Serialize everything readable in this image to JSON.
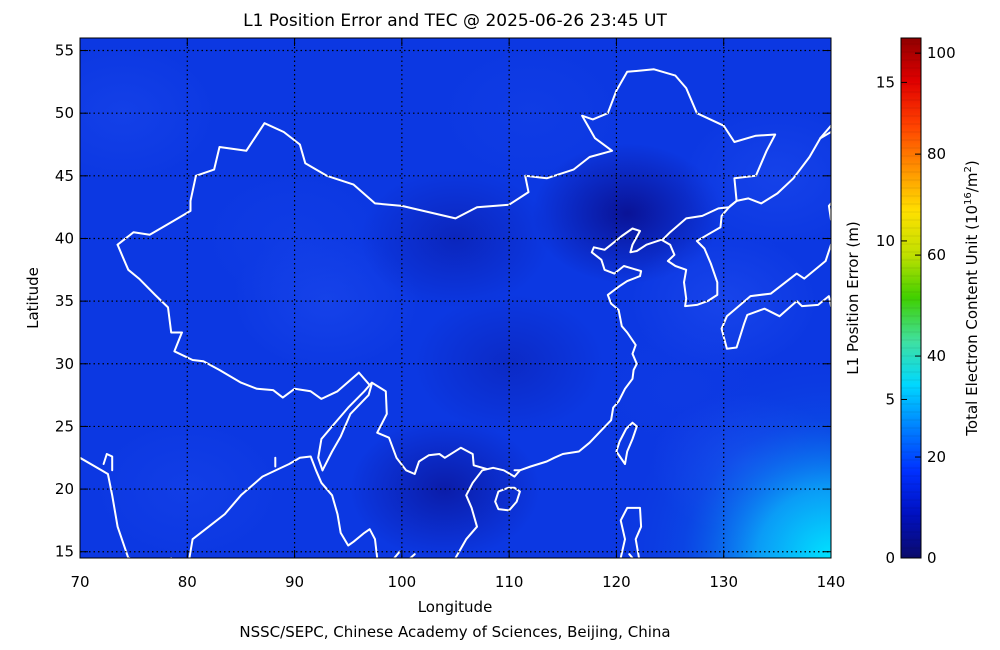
{
  "chart_data": {
    "type": "heatmap",
    "title": "L1 Position Error and TEC @ 2025-06-26 23:45 UT",
    "footer": "NSSC/SEPC, Chinese Academy of Sciences, Beijing, China",
    "xlabel": "Longitude",
    "ylabel": "Latitude",
    "xlim": [
      70,
      140
    ],
    "ylim": [
      14.5,
      56
    ],
    "x_ticks": [
      "70",
      "80",
      "90",
      "100",
      "110",
      "120",
      "130",
      "140"
    ],
    "y_ticks": [
      "15",
      "20",
      "25",
      "30",
      "35",
      "40",
      "45",
      "50",
      "55"
    ],
    "grid": true,
    "colorbar": {
      "left_label": "L1 Position Error (m)",
      "left_ticks": [
        "0",
        "5",
        "10",
        "15"
      ],
      "left_range": [
        0,
        16.4
      ],
      "right_label_main": "Total Electron Content Unit (10",
      "right_label_sup": "16",
      "right_label_mid": "/m",
      "right_label_sup2": "2",
      "right_label_end": ")",
      "right_ticks": [
        "0",
        "20",
        "40",
        "60",
        "80",
        "100"
      ],
      "right_range": [
        0,
        103
      ],
      "colors": [
        "#0b0b6b",
        "#0010c0",
        "#0030ff",
        "#0080ff",
        "#00d8ff",
        "#40e0a0",
        "#40d000",
        "#c0e000",
        "#ffe000",
        "#ff9000",
        "#ff4000",
        "#e00000",
        "#900000"
      ]
    },
    "tec_field_samples": [
      {
        "lon": 74,
        "lat": 50,
        "tec": 21
      },
      {
        "lon": 90,
        "lat": 40,
        "tec": 19
      },
      {
        "lon": 93,
        "lat": 35,
        "tec": 22
      },
      {
        "lon": 105,
        "lat": 40,
        "tec": 16
      },
      {
        "lon": 110,
        "lat": 30,
        "tec": 17
      },
      {
        "lon": 121,
        "lat": 42,
        "tec": 11
      },
      {
        "lon": 104,
        "lat": 20,
        "tec": 14
      },
      {
        "lon": 126,
        "lat": 28,
        "tec": 18
      },
      {
        "lon": 135,
        "lat": 45,
        "tec": 22
      },
      {
        "lon": 138,
        "lat": 16,
        "tec": 40
      },
      {
        "lon": 132,
        "lat": 22,
        "tec": 29
      },
      {
        "lon": 130,
        "lat": 35,
        "tec": 23
      },
      {
        "lon": 80,
        "lat": 20,
        "tec": 20
      },
      {
        "lon": 112,
        "lat": 50,
        "tec": 19
      }
    ],
    "coastlines": [
      [
        [
          70,
          22.5
        ],
        [
          72,
          21.5
        ],
        [
          72.6,
          21.2
        ],
        [
          73,
          19.5
        ],
        [
          73.5,
          17
        ],
        [
          74.5,
          14.5
        ]
      ],
      [
        [
          72.2,
          22
        ],
        [
          72.5,
          22.8
        ],
        [
          73,
          22.6
        ],
        [
          73,
          21.5
        ]
      ],
      [
        [
          80.2,
          14.5
        ],
        [
          80.5,
          16
        ],
        [
          82,
          17
        ],
        [
          83.5,
          18
        ],
        [
          85,
          19.5
        ],
        [
          87,
          21
        ],
        [
          88.5,
          21.6
        ],
        [
          89.5,
          22
        ],
        [
          90.5,
          22.5
        ],
        [
          91.5,
          22.6
        ],
        [
          92,
          21.5
        ],
        [
          92.5,
          20.5
        ],
        [
          93.5,
          19.5
        ],
        [
          94,
          18
        ],
        [
          94.3,
          16.5
        ],
        [
          95,
          15.5
        ],
        [
          95.5,
          15.8
        ],
        [
          96.5,
          16.5
        ],
        [
          97,
          16.8
        ],
        [
          97.5,
          16
        ],
        [
          97.7,
          14.5
        ]
      ],
      [
        [
          99.3,
          14.5
        ],
        [
          99.8,
          15
        ]
      ],
      [
        [
          100.8,
          14.5
        ],
        [
          101.2,
          14.8
        ]
      ],
      [
        [
          105,
          14.5
        ],
        [
          106,
          16
        ],
        [
          107,
          17
        ],
        [
          106.5,
          18.5
        ],
        [
          106,
          19.5
        ],
        [
          106.6,
          20.5
        ],
        [
          107.5,
          21.5
        ],
        [
          108.5,
          21.7
        ],
        [
          109.5,
          21.5
        ],
        [
          110.5,
          21
        ],
        [
          111,
          21.5
        ],
        [
          112,
          21.8
        ],
        [
          113.5,
          22.2
        ],
        [
          114.2,
          22.5
        ],
        [
          115,
          22.8
        ],
        [
          116.5,
          23
        ],
        [
          117.5,
          23.7
        ],
        [
          118.5,
          24.6
        ],
        [
          119.5,
          25.5
        ],
        [
          119.7,
          26.5
        ],
        [
          120.2,
          27
        ],
        [
          120.8,
          28
        ],
        [
          121.5,
          28.8
        ],
        [
          121.6,
          29.5
        ],
        [
          121.9,
          30
        ],
        [
          121.5,
          30.8
        ],
        [
          121.8,
          31.5
        ],
        [
          121,
          32.5
        ],
        [
          120.5,
          33
        ],
        [
          120.2,
          34.3
        ],
        [
          119.5,
          34.8
        ],
        [
          119.2,
          35.5
        ],
        [
          120.3,
          36.2
        ],
        [
          121,
          36.6
        ],
        [
          122.2,
          37
        ],
        [
          122.3,
          37.4
        ],
        [
          121.5,
          37.6
        ],
        [
          120.7,
          37.8
        ],
        [
          119.8,
          37.2
        ],
        [
          118.9,
          37.5
        ],
        [
          118.6,
          38.3
        ],
        [
          117.7,
          38.9
        ],
        [
          117.9,
          39.3
        ],
        [
          118.9,
          39.1
        ],
        [
          119.5,
          39.5
        ],
        [
          120.5,
          40.2
        ],
        [
          121.5,
          40.8
        ],
        [
          122.2,
          40.6
        ],
        [
          121.5,
          39.5
        ],
        [
          121.3,
          38.9
        ],
        [
          121.9,
          39
        ],
        [
          122.8,
          39.5
        ],
        [
          124.2,
          39.9
        ],
        [
          125,
          39.5
        ],
        [
          125.4,
          38.7
        ],
        [
          124.8,
          38.2
        ],
        [
          125.5,
          37.8
        ],
        [
          126.5,
          37.5
        ],
        [
          126.3,
          36.5
        ],
        [
          126.5,
          35.2
        ],
        [
          126.4,
          34.6
        ],
        [
          127.5,
          34.7
        ],
        [
          128.5,
          35
        ],
        [
          129.4,
          35.5
        ],
        [
          129.4,
          36.5
        ],
        [
          128.8,
          38
        ],
        [
          128.2,
          39.2
        ],
        [
          127.5,
          39.8
        ],
        [
          128.5,
          40.3
        ],
        [
          129.7,
          40.9
        ],
        [
          129.8,
          41.8
        ],
        [
          130.6,
          42.6
        ],
        [
          131.2,
          43
        ],
        [
          132.3,
          43.2
        ],
        [
          133.5,
          42.8
        ],
        [
          135,
          43.6
        ],
        [
          136.5,
          44.8
        ],
        [
          138,
          46.5
        ],
        [
          139,
          48
        ],
        [
          140,
          48.5
        ]
      ],
      [
        [
          110.5,
          21.5
        ],
        [
          111,
          21.5
        ]
      ],
      [
        [
          109,
          18.4
        ],
        [
          110,
          18.3
        ],
        [
          110.7,
          19
        ],
        [
          111,
          19.8
        ],
        [
          110.5,
          20.1
        ],
        [
          109.9,
          20.1
        ],
        [
          109,
          19.8
        ],
        [
          108.7,
          19
        ],
        [
          109,
          18.4
        ]
      ],
      [
        [
          120.8,
          22
        ],
        [
          121,
          23
        ],
        [
          121.5,
          24
        ],
        [
          121.9,
          25
        ],
        [
          121.5,
          25.3
        ],
        [
          120.9,
          24.8
        ],
        [
          120.3,
          23.8
        ],
        [
          120,
          23
        ],
        [
          120.8,
          22
        ]
      ],
      [
        [
          120.4,
          14.5
        ],
        [
          120.8,
          16
        ],
        [
          120.4,
          17.5
        ],
        [
          121,
          18.5
        ],
        [
          122.2,
          18.5
        ],
        [
          122.3,
          17
        ],
        [
          121.8,
          16
        ],
        [
          122.1,
          14.5
        ]
      ],
      [
        [
          140,
          34.6
        ],
        [
          139.8,
          35.4
        ],
        [
          138.8,
          34.7
        ],
        [
          137.3,
          34.6
        ],
        [
          136.8,
          35
        ],
        [
          135.2,
          33.8
        ],
        [
          133.8,
          34.4
        ],
        [
          132.2,
          33.9
        ],
        [
          131.9,
          33.2
        ],
        [
          131.2,
          31.3
        ],
        [
          130.3,
          31.2
        ],
        [
          129.8,
          32.8
        ],
        [
          130.3,
          33.8
        ],
        [
          131,
          34.3
        ],
        [
          132.5,
          35.4
        ],
        [
          134.4,
          35.6
        ],
        [
          136.8,
          37.2
        ],
        [
          137.5,
          36.8
        ],
        [
          139.5,
          38.2
        ],
        [
          140,
          39.5
        ]
      ],
      [
        [
          140,
          41.5
        ],
        [
          139.8,
          42.6
        ],
        [
          140.5,
          43.3
        ],
        [
          140.5,
          45
        ]
      ],
      [
        [
          121.5,
          14.5
        ],
        [
          121.2,
          14.8
        ]
      ],
      [
        [
          74.5,
          14.5
        ],
        [
          74.6,
          14.5
        ]
      ]
    ],
    "borders": [
      [
        [
          78.5,
          14.5
        ],
        [
          78.5,
          14.5
        ]
      ],
      [
        [
          88.2,
          21.8
        ],
        [
          88.2,
          22.5
        ]
      ],
      [
        [
          92.6,
          21.5
        ],
        [
          92.2,
          22.5
        ],
        [
          92.5,
          24
        ],
        [
          93.5,
          25
        ],
        [
          95,
          26.5
        ],
        [
          96.5,
          27.8
        ],
        [
          97.2,
          28.5
        ],
        [
          98.5,
          27.8
        ],
        [
          98.6,
          26
        ],
        [
          97.7,
          24.5
        ],
        [
          98.8,
          24.1
        ],
        [
          99.5,
          22.5
        ],
        [
          100.4,
          21.5
        ],
        [
          101.2,
          21.2
        ],
        [
          101.6,
          22.2
        ],
        [
          102.5,
          22.7
        ],
        [
          103.5,
          22.8
        ],
        [
          104,
          22.5
        ],
        [
          105.5,
          23.3
        ],
        [
          106.6,
          22.8
        ],
        [
          106.7,
          21.9
        ],
        [
          107.9,
          21.6
        ]
      ],
      [
        [
          92.6,
          21.5
        ],
        [
          93.5,
          23
        ],
        [
          94.3,
          24.2
        ],
        [
          95.2,
          26
        ],
        [
          96.9,
          27.5
        ],
        [
          97.2,
          28.4
        ]
      ],
      [
        [
          73.5,
          39.5
        ],
        [
          75,
          40.5
        ],
        [
          76.5,
          40.3
        ],
        [
          78.5,
          41.3
        ],
        [
          80.3,
          42.2
        ],
        [
          80.3,
          43
        ],
        [
          80.8,
          45
        ],
        [
          82.5,
          45.5
        ],
        [
          83,
          47.3
        ],
        [
          85.5,
          47
        ],
        [
          87.2,
          49.2
        ],
        [
          89,
          48.5
        ],
        [
          90.5,
          47.5
        ],
        [
          91,
          46
        ],
        [
          93,
          45
        ],
        [
          95.5,
          44.3
        ],
        [
          97.5,
          42.8
        ],
        [
          100,
          42.6
        ],
        [
          105,
          41.6
        ],
        [
          107,
          42.5
        ],
        [
          110,
          42.7
        ],
        [
          111.8,
          43.7
        ],
        [
          111.5,
          45
        ],
        [
          113.5,
          44.8
        ],
        [
          116,
          45.5
        ],
        [
          117.5,
          46.5
        ],
        [
          119.6,
          47
        ],
        [
          118,
          48
        ],
        [
          116.8,
          49.8
        ],
        [
          117.8,
          49.5
        ],
        [
          119.2,
          50
        ],
        [
          120,
          51.8
        ],
        [
          121,
          53.3
        ],
        [
          123.5,
          53.5
        ],
        [
          125.5,
          53
        ],
        [
          126.5,
          52
        ],
        [
          127.5,
          50
        ],
        [
          130,
          49
        ],
        [
          131,
          47.7
        ],
        [
          133,
          48.2
        ],
        [
          134.8,
          48.3
        ],
        [
          134,
          47
        ],
        [
          133,
          45
        ],
        [
          131,
          44.8
        ],
        [
          131.2,
          43
        ],
        [
          130.5,
          42.5
        ],
        [
          129.5,
          42.4
        ],
        [
          128,
          41.8
        ],
        [
          126.5,
          41.6
        ],
        [
          125,
          40.5
        ],
        [
          124.3,
          39.9
        ]
      ],
      [
        [
          79.5,
          32.5
        ],
        [
          78.5,
          32.5
        ],
        [
          78.2,
          34.5
        ],
        [
          77,
          35.5
        ],
        [
          75.5,
          36.8
        ],
        [
          74.5,
          37.5
        ],
        [
          74,
          38.5
        ],
        [
          73.5,
          39.5
        ]
      ],
      [
        [
          79.5,
          32.5
        ],
        [
          78.8,
          31
        ],
        [
          80.5,
          30.3
        ],
        [
          81.5,
          30.2
        ],
        [
          83,
          29.5
        ],
        [
          85,
          28.5
        ],
        [
          86.5,
          28
        ],
        [
          88,
          27.9
        ],
        [
          88.9,
          27.3
        ],
        [
          90,
          28
        ],
        [
          91.5,
          27.8
        ],
        [
          92.5,
          27.2
        ],
        [
          94,
          27.8
        ],
        [
          96,
          29.3
        ],
        [
          97,
          28.3
        ]
      ],
      [
        [
          140,
          49
        ],
        [
          139,
          48
        ]
      ]
    ]
  }
}
